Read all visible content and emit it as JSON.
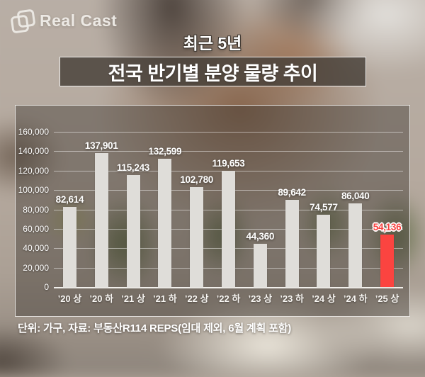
{
  "logo": {
    "brand": "Real Cast"
  },
  "header": {
    "subtitle": "최근 5년",
    "title": "전국 반기별 분양 물량 추이"
  },
  "footer": {
    "source_note": "단위: 가구, 자료: 부동산R114 REPS(임대 제외, 6월 계획 포함)"
  },
  "colors": {
    "accent_red": "#fb4440",
    "bar_fill": "#dfddd9",
    "grid_line": "rgba(255,255,255,0.5)",
    "panel_overlay": "rgba(64,58,52,0.45)",
    "label_white": "#ffffff"
  },
  "chart_data": {
    "type": "bar",
    "title": "전국 반기별 분양 물량 추이",
    "subtitle": "최근 5년",
    "unit": "가구",
    "categories": [
      "’20 상",
      "’20 하",
      "’21 상",
      "’21 하",
      "’22 상",
      "’22 하",
      "’23 상",
      "’23 하",
      "’24 상",
      "’24 하",
      "’25 상"
    ],
    "values": [
      82614,
      137901,
      115243,
      132599,
      102780,
      119653,
      44360,
      89642,
      74577,
      86040,
      54136
    ],
    "highlight_index": 10,
    "highlight_color": "#fb4440",
    "ylim": [
      0,
      160000
    ],
    "ytick_step": 20000,
    "grid": true,
    "legend": "none",
    "xlabel": "",
    "ylabel": ""
  }
}
